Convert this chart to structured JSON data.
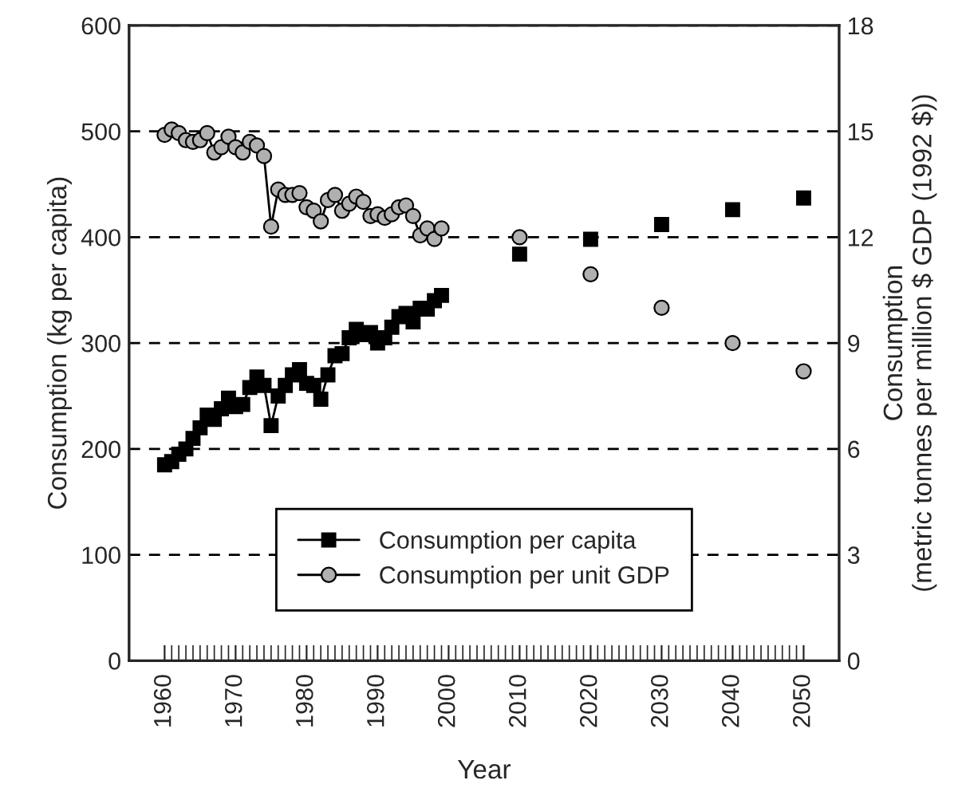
{
  "chart_data": {
    "type": "line",
    "xlabel": "Year",
    "ylabel": "Consumption (kg per capita)",
    "y2label": "Consumption\n(metric tonnes per million $ GDP (1992 $))",
    "xlim": [
      1955,
      2055
    ],
    "xticks": [
      1960,
      1970,
      1980,
      1990,
      2000,
      2010,
      2020,
      2030,
      2040,
      2050
    ],
    "ylim": [
      0,
      600
    ],
    "yticks": [
      0,
      100,
      200,
      300,
      400,
      500,
      600
    ],
    "y2lim": [
      0,
      18
    ],
    "y2ticks": [
      0,
      3,
      6,
      9,
      12,
      15,
      18
    ],
    "grid": "y",
    "legend": "bottom",
    "series": [
      {
        "name": "Consumption per capita",
        "marker": "square",
        "color": "#000000",
        "x": [
          1960,
          1961,
          1962,
          1963,
          1964,
          1965,
          1966,
          1967,
          1968,
          1969,
          1970,
          1971,
          1972,
          1973,
          1974,
          1975,
          1976,
          1977,
          1978,
          1979,
          1980,
          1981,
          1982,
          1983,
          1984,
          1985,
          1986,
          1987,
          1988,
          1989,
          1990,
          1991,
          1992,
          1993,
          1994,
          1995,
          1996,
          1997,
          1998,
          1999
        ],
        "values": [
          185,
          188,
          195,
          200,
          210,
          220,
          232,
          228,
          238,
          248,
          240,
          242,
          258,
          268,
          260,
          222,
          250,
          260,
          270,
          275,
          262,
          260,
          247,
          270,
          288,
          290,
          305,
          313,
          308,
          310,
          300,
          305,
          315,
          325,
          328,
          320,
          333,
          332,
          340,
          345
        ]
      },
      {
        "type": "scatter",
        "marker": "square",
        "color": "#000000",
        "x": [
          2010,
          2020,
          2030,
          2040,
          2050
        ],
        "values": [
          384,
          398,
          412,
          426,
          437
        ]
      },
      {
        "name": "Consumption per unit GDP",
        "marker": "circle",
        "color": "#b0b0b0",
        "axis": "y2",
        "x": [
          1960,
          1961,
          1962,
          1963,
          1964,
          1965,
          1966,
          1967,
          1968,
          1969,
          1970,
          1971,
          1972,
          1973,
          1974,
          1975,
          1976,
          1977,
          1978,
          1979,
          1980,
          1981,
          1982,
          1983,
          1984,
          1985,
          1986,
          1987,
          1988,
          1989,
          1990,
          1991,
          1992,
          1993,
          1994,
          1995,
          1996,
          1997,
          1998,
          1999
        ],
        "values": [
          14.9,
          15.05,
          14.95,
          14.75,
          14.7,
          14.75,
          14.95,
          14.4,
          14.55,
          14.85,
          14.55,
          14.4,
          14.7,
          14.6,
          14.3,
          12.3,
          13.35,
          13.2,
          13.2,
          13.25,
          12.85,
          12.75,
          12.45,
          13.05,
          13.2,
          12.75,
          12.95,
          13.15,
          13.0,
          12.6,
          12.65,
          12.55,
          12.65,
          12.85,
          12.9,
          12.6,
          12.05,
          12.25,
          11.95,
          12.25
        ]
      },
      {
        "type": "scatter",
        "marker": "circle",
        "color": "#b0b0b0",
        "axis": "y2",
        "x": [
          2010,
          2020,
          2030,
          2040,
          2050
        ],
        "values": [
          12.0,
          10.95,
          10.0,
          9.0,
          8.2
        ]
      }
    ]
  }
}
